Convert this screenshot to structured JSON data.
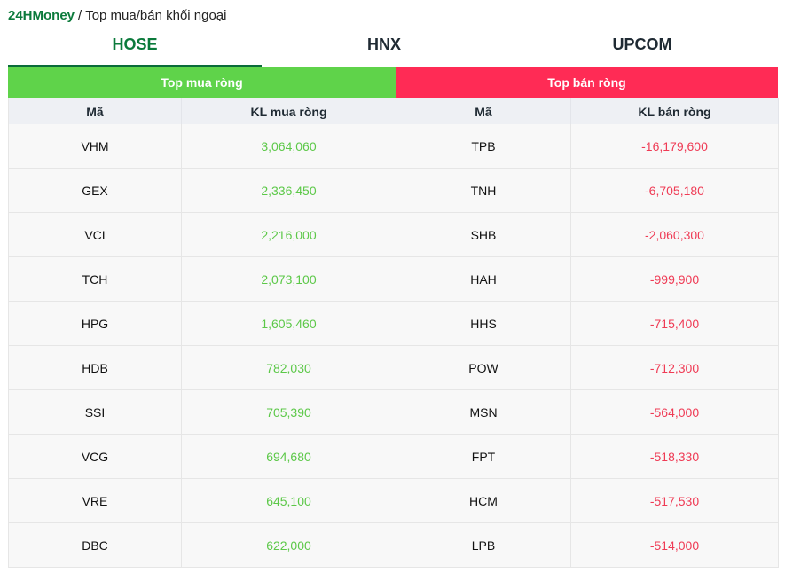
{
  "breadcrumb": {
    "brand": "24HMoney",
    "separator": "/",
    "page": "Top mua/bán khối ngoại"
  },
  "tabs": [
    {
      "label": "HOSE",
      "active": true
    },
    {
      "label": "HNX",
      "active": false
    },
    {
      "label": "UPCOM",
      "active": false
    }
  ],
  "panels": {
    "buy_title": "Top mua ròng",
    "sell_title": "Top bán ròng"
  },
  "columns": {
    "buy_symbol": "Mã",
    "buy_volume": "KL mua ròng",
    "sell_symbol": "Mã",
    "sell_volume": "KL bán ròng"
  },
  "rows": [
    {
      "buy_symbol": "VHM",
      "buy_volume": "3,064,060",
      "sell_symbol": "TPB",
      "sell_volume": "-16,179,600"
    },
    {
      "buy_symbol": "GEX",
      "buy_volume": "2,336,450",
      "sell_symbol": "TNH",
      "sell_volume": "-6,705,180"
    },
    {
      "buy_symbol": "VCI",
      "buy_volume": "2,216,000",
      "sell_symbol": "SHB",
      "sell_volume": "-2,060,300"
    },
    {
      "buy_symbol": "TCH",
      "buy_volume": "2,073,100",
      "sell_symbol": "HAH",
      "sell_volume": "-999,900"
    },
    {
      "buy_symbol": "HPG",
      "buy_volume": "1,605,460",
      "sell_symbol": "HHS",
      "sell_volume": "-715,400"
    },
    {
      "buy_symbol": "HDB",
      "buy_volume": "782,030",
      "sell_symbol": "POW",
      "sell_volume": "-712,300"
    },
    {
      "buy_symbol": "SSI",
      "buy_volume": "705,390",
      "sell_symbol": "MSN",
      "sell_volume": "-564,000"
    },
    {
      "buy_symbol": "VCG",
      "buy_volume": "694,680",
      "sell_symbol": "FPT",
      "sell_volume": "-518,330"
    },
    {
      "buy_symbol": "VRE",
      "buy_volume": "645,100",
      "sell_symbol": "HCM",
      "sell_volume": "-517,530"
    },
    {
      "buy_symbol": "DBC",
      "buy_volume": "622,000",
      "sell_symbol": "LPB",
      "sell_volume": "-514,000"
    }
  ],
  "colors": {
    "brand": "#0b7a3b",
    "buy_header": "#5fd34a",
    "sell_header": "#ff2b55",
    "buy_value": "#5cc848",
    "sell_value": "#ef3b55"
  }
}
